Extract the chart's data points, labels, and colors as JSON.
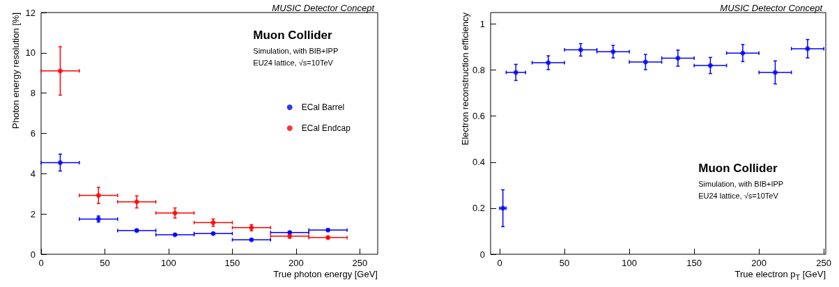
{
  "chart_data": [
    {
      "type": "scatter",
      "title": "MUSIC Detector Concept",
      "xlabel": "True photon energy [GeV]",
      "ylabel": "Photon energy resolution [%]",
      "annotations": [
        "Muon Collider",
        "Simulation, with BIB+IPP",
        "EU24 lattice, √s=10TeV"
      ],
      "xlim": [
        0,
        264
      ],
      "xticks": [
        0,
        50,
        100,
        150,
        200,
        250
      ],
      "ylim": [
        0,
        12
      ],
      "yticks": [
        0,
        2,
        4,
        6,
        8,
        10,
        12
      ],
      "x": [
        15,
        45,
        75,
        105,
        135,
        165,
        195,
        225
      ],
      "legend": "right",
      "marker": "circle",
      "grid": false,
      "series": [
        {
          "name": "ECal Barrel",
          "color": "#0000ff",
          "values": [
            4.55,
            1.75,
            1.18,
            0.97,
            1.03,
            0.72,
            1.08,
            1.2
          ],
          "errors": [
            0.42,
            0.15,
            0.05,
            0.04,
            0.05,
            0.04,
            0.05,
            0.05
          ],
          "xerrors": [
            15,
            15,
            15,
            15,
            15,
            15,
            15,
            15
          ]
        },
        {
          "name": "ECal Endcap",
          "color": "#ff0000",
          "values": [
            9.1,
            2.92,
            2.6,
            2.05,
            1.57,
            1.32,
            0.9,
            0.83
          ],
          "errors": [
            1.2,
            0.4,
            0.3,
            0.25,
            0.18,
            0.15,
            0.1,
            0.07
          ],
          "xerrors": [
            15,
            15,
            15,
            15,
            15,
            15,
            15,
            15
          ]
        }
      ]
    },
    {
      "type": "scatter",
      "title": "MUSIC Detector Concept",
      "xlabel": "True electron p$_{T}$ [GeV]",
      "ylabel": "Electron reconstruction efficiency",
      "annotations": [
        "Muon Collider",
        "Simulation, with BIB+IPP",
        "EU24 lattice, √s=10TeV"
      ],
      "xlim": [
        -7,
        251.5
      ],
      "xticks": [
        0,
        50,
        100,
        150,
        200,
        250
      ],
      "ylim": [
        0,
        1.05
      ],
      "yticks": [
        0,
        0.2,
        0.4,
        0.6,
        0.8,
        1
      ],
      "x": [
        2.5,
        12.5,
        37.5,
        62.5,
        87.5,
        112.5,
        137.5,
        162.5,
        187.5,
        212.5,
        237.5
      ],
      "marker": "circle",
      "grid": false,
      "series": [
        {
          "color": "#0000ff",
          "values": [
            0.2,
            0.79,
            0.832,
            0.888,
            0.88,
            0.835,
            0.852,
            0.82,
            0.874,
            0.79,
            0.893
          ],
          "errors": [
            0.08,
            0.035,
            0.03,
            0.027,
            0.027,
            0.033,
            0.035,
            0.035,
            0.037,
            0.05,
            0.04
          ],
          "xerrors": [
            2.5,
            7.5,
            12.5,
            12.5,
            12.5,
            12.5,
            12.5,
            12.5,
            12.5,
            12.5,
            12.5
          ]
        }
      ]
    }
  ]
}
